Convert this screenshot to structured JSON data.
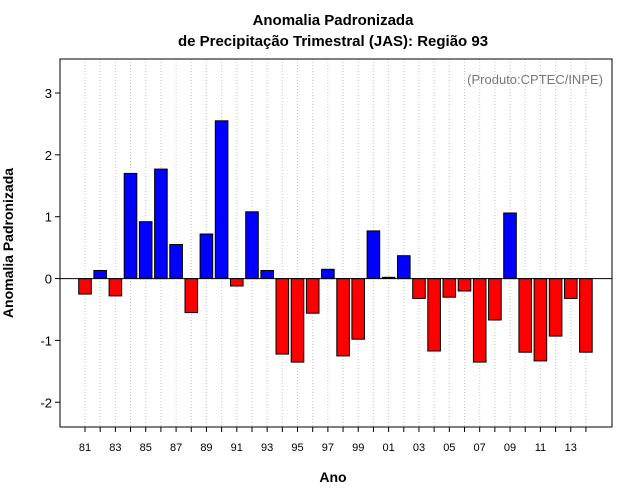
{
  "chart_data": {
    "type": "bar",
    "title_line1": "Anomalia Padronizada",
    "title_line2": "de Precipitação Trimestral (JAS): Região 93",
    "ylabel": "Anomalia Padronizada",
    "xlabel": "Ano",
    "credit": "(Produto:CPTEC/INPE)",
    "ylim": [
      -2.4,
      3.55
    ],
    "yticks": [
      -2,
      -1,
      0,
      1,
      2,
      3
    ],
    "grid": "vertical dotted",
    "positive_color": "#0000ff",
    "negative_color": "#ff0000",
    "categories": [
      "81",
      "82",
      "83",
      "84",
      "85",
      "86",
      "87",
      "88",
      "89",
      "90",
      "91",
      "92",
      "93",
      "94",
      "95",
      "96",
      "97",
      "98",
      "99",
      "00",
      "01",
      "02",
      "03",
      "04",
      "05",
      "06",
      "07",
      "08",
      "09",
      "10",
      "11",
      "12",
      "13",
      "14"
    ],
    "xtick_labels": [
      "81",
      "83",
      "85",
      "87",
      "89",
      "91",
      "93",
      "95",
      "97",
      "99",
      "01",
      "03",
      "05",
      "07",
      "09",
      "11",
      "13"
    ],
    "values": [
      -0.25,
      0.13,
      -0.28,
      1.7,
      0.92,
      1.77,
      0.55,
      -0.55,
      0.72,
      2.55,
      -0.12,
      1.08,
      0.13,
      -1.22,
      -1.35,
      -0.56,
      0.15,
      -1.25,
      -0.98,
      0.77,
      0.02,
      0.37,
      -0.32,
      -1.17,
      -0.3,
      -0.2,
      -1.35,
      -0.67,
      1.06,
      -1.19,
      -1.33,
      -0.93,
      -0.32,
      -1.19
    ]
  }
}
